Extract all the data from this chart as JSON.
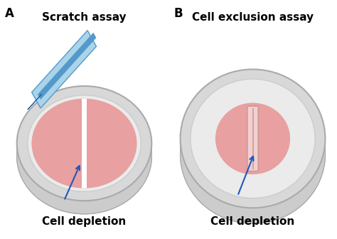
{
  "bg_color": "#ffffff",
  "label_A": "A",
  "label_B": "B",
  "title_A": "Scratch assay",
  "title_B": "Cell exclusion assay",
  "caption_A": "Cell depletion",
  "caption_B": "Cell depletion",
  "title_fontsize": 11,
  "caption_fontsize": 11,
  "label_fontsize": 12,
  "dish_rim_color": "#cccccc",
  "dish_rim_dark": "#aaaaaa",
  "dish_floor_color": "#e8e8e8",
  "dish_wall_color": "#d5d5d5",
  "cell_fill_color": "#e8a0a0",
  "arrow_color": "#2255bb",
  "pip_light": "#aad4e8",
  "pip_mid": "#5599cc",
  "pip_dark": "#2266aa",
  "insert_fill": "#f2d0d0",
  "insert_border": "#cc9999"
}
